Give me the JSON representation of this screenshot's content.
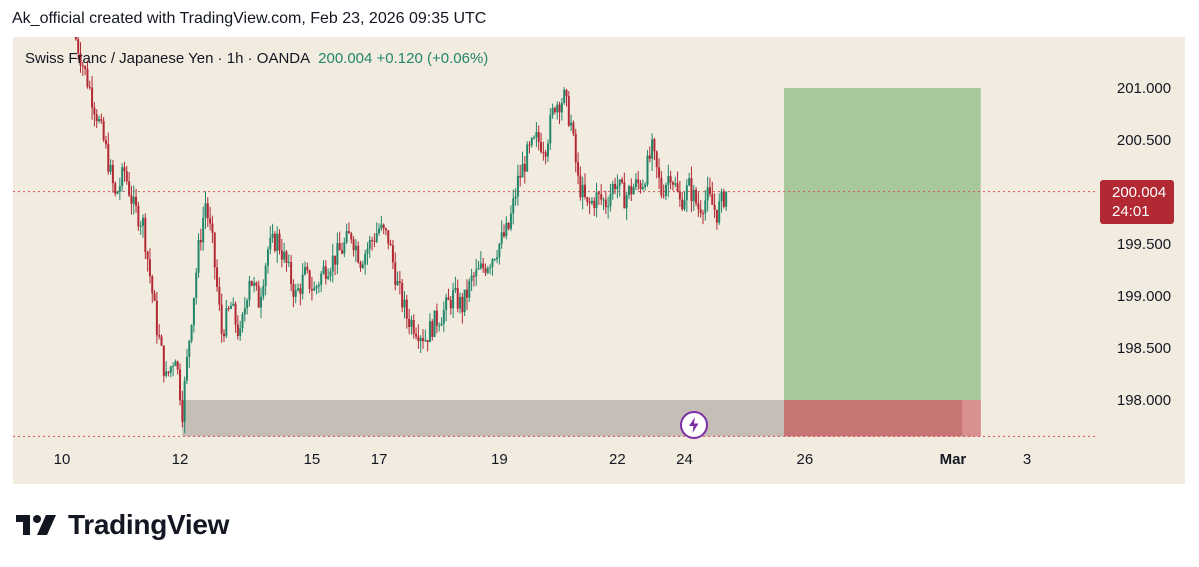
{
  "header": {
    "caption": "Ak_official created with TradingView.com, Feb 23, 2026 09:35 UTC"
  },
  "legend": {
    "symbol": "Swiss Franc / Japanese Yen · 1h · OANDA",
    "quote": "200.004 +0.120 (+0.06%)"
  },
  "price_tag": {
    "price": "200.004",
    "countdown": "24:01"
  },
  "footer": {
    "brand": "TradingView"
  },
  "icons": {
    "alert": "lightning-bolt-icon",
    "logo": "tradingview-logo-icon"
  },
  "colors": {
    "background": "#f2ece0",
    "up": "#22866a",
    "down": "#b22833",
    "profit_zone": "#a8c89c",
    "loss_zone": "#c77474",
    "support_zone": "#c1bcb3",
    "price_line": "#d94c4c"
  },
  "chart_data": {
    "type": "candlestick",
    "title": "Swiss Franc / Japanese Yen · 1h · OANDA",
    "last_price": 200.004,
    "change": "+0.120 (+0.06%)",
    "ylim": [
      197.6,
      201.45
    ],
    "y_ticks": [
      "201.000",
      "200.500",
      "199.500",
      "199.000",
      "198.500",
      "198.000"
    ],
    "x_ticks": [
      "10",
      "12",
      "15",
      "17",
      "19",
      "22",
      "24",
      "26",
      "Mar",
      "3"
    ],
    "x_tick_index": [
      -5,
      46,
      103,
      132,
      184,
      235,
      264,
      316,
      380,
      412
    ],
    "price_path": [
      [
        0,
        201.55
      ],
      [
        5,
        201.15
      ],
      [
        10,
        200.75
      ],
      [
        14,
        200.4
      ],
      [
        18,
        199.95
      ],
      [
        22,
        200.2
      ],
      [
        26,
        199.85
      ],
      [
        30,
        199.7
      ],
      [
        33,
        199.2
      ],
      [
        36,
        198.7
      ],
      [
        40,
        198.2
      ],
      [
        44,
        198.45
      ],
      [
        47,
        197.9
      ],
      [
        50,
        198.6
      ],
      [
        54,
        199.45
      ],
      [
        57,
        199.9
      ],
      [
        60,
        199.5
      ],
      [
        64,
        198.65
      ],
      [
        68,
        198.9
      ],
      [
        72,
        198.6
      ],
      [
        76,
        199.2
      ],
      [
        80,
        198.95
      ],
      [
        84,
        199.45
      ],
      [
        88,
        199.55
      ],
      [
        92,
        199.3
      ],
      [
        96,
        199.0
      ],
      [
        100,
        199.2
      ],
      [
        104,
        199.05
      ],
      [
        108,
        199.25
      ],
      [
        112,
        199.35
      ],
      [
        116,
        199.45
      ],
      [
        120,
        199.6
      ],
      [
        124,
        199.35
      ],
      [
        128,
        199.5
      ],
      [
        132,
        199.65
      ],
      [
        136,
        199.55
      ],
      [
        140,
        199.1
      ],
      [
        144,
        198.8
      ],
      [
        148,
        198.7
      ],
      [
        152,
        198.6
      ],
      [
        156,
        198.75
      ],
      [
        160,
        198.85
      ],
      [
        164,
        199.0
      ],
      [
        168,
        198.9
      ],
      [
        172,
        199.15
      ],
      [
        176,
        199.25
      ],
      [
        180,
        199.35
      ],
      [
        184,
        199.5
      ],
      [
        188,
        199.65
      ],
      [
        192,
        200.1
      ],
      [
        196,
        200.35
      ],
      [
        200,
        200.5
      ],
      [
        204,
        200.45
      ],
      [
        208,
        200.85
      ],
      [
        212,
        200.9
      ],
      [
        215,
        200.65
      ],
      [
        218,
        200.1
      ],
      [
        222,
        199.85
      ],
      [
        226,
        199.95
      ],
      [
        230,
        199.9
      ],
      [
        234,
        200.1
      ],
      [
        238,
        199.95
      ],
      [
        242,
        200.05
      ],
      [
        246,
        200.1
      ],
      [
        250,
        200.4
      ],
      [
        254,
        200.0
      ],
      [
        258,
        200.2
      ],
      [
        262,
        199.9
      ],
      [
        266,
        200.05
      ],
      [
        270,
        199.85
      ],
      [
        274,
        199.95
      ],
      [
        278,
        199.8
      ],
      [
        282,
        200.004
      ]
    ],
    "last_bar_index": 282,
    "zones": [
      {
        "name": "profit-zone",
        "from_index": 307,
        "to_index": 392,
        "y_top": 201.0,
        "y_bottom": 198.0
      },
      {
        "name": "loss-zone",
        "from_index": 307,
        "to_index": 392,
        "y_top": 198.0,
        "y_bottom": 197.65
      },
      {
        "name": "support-zone",
        "from_index": 47,
        "to_index": 307,
        "y_top": 198.0,
        "y_bottom": 197.65
      }
    ],
    "current_price_line": 200.004,
    "low_line": 197.65
  }
}
